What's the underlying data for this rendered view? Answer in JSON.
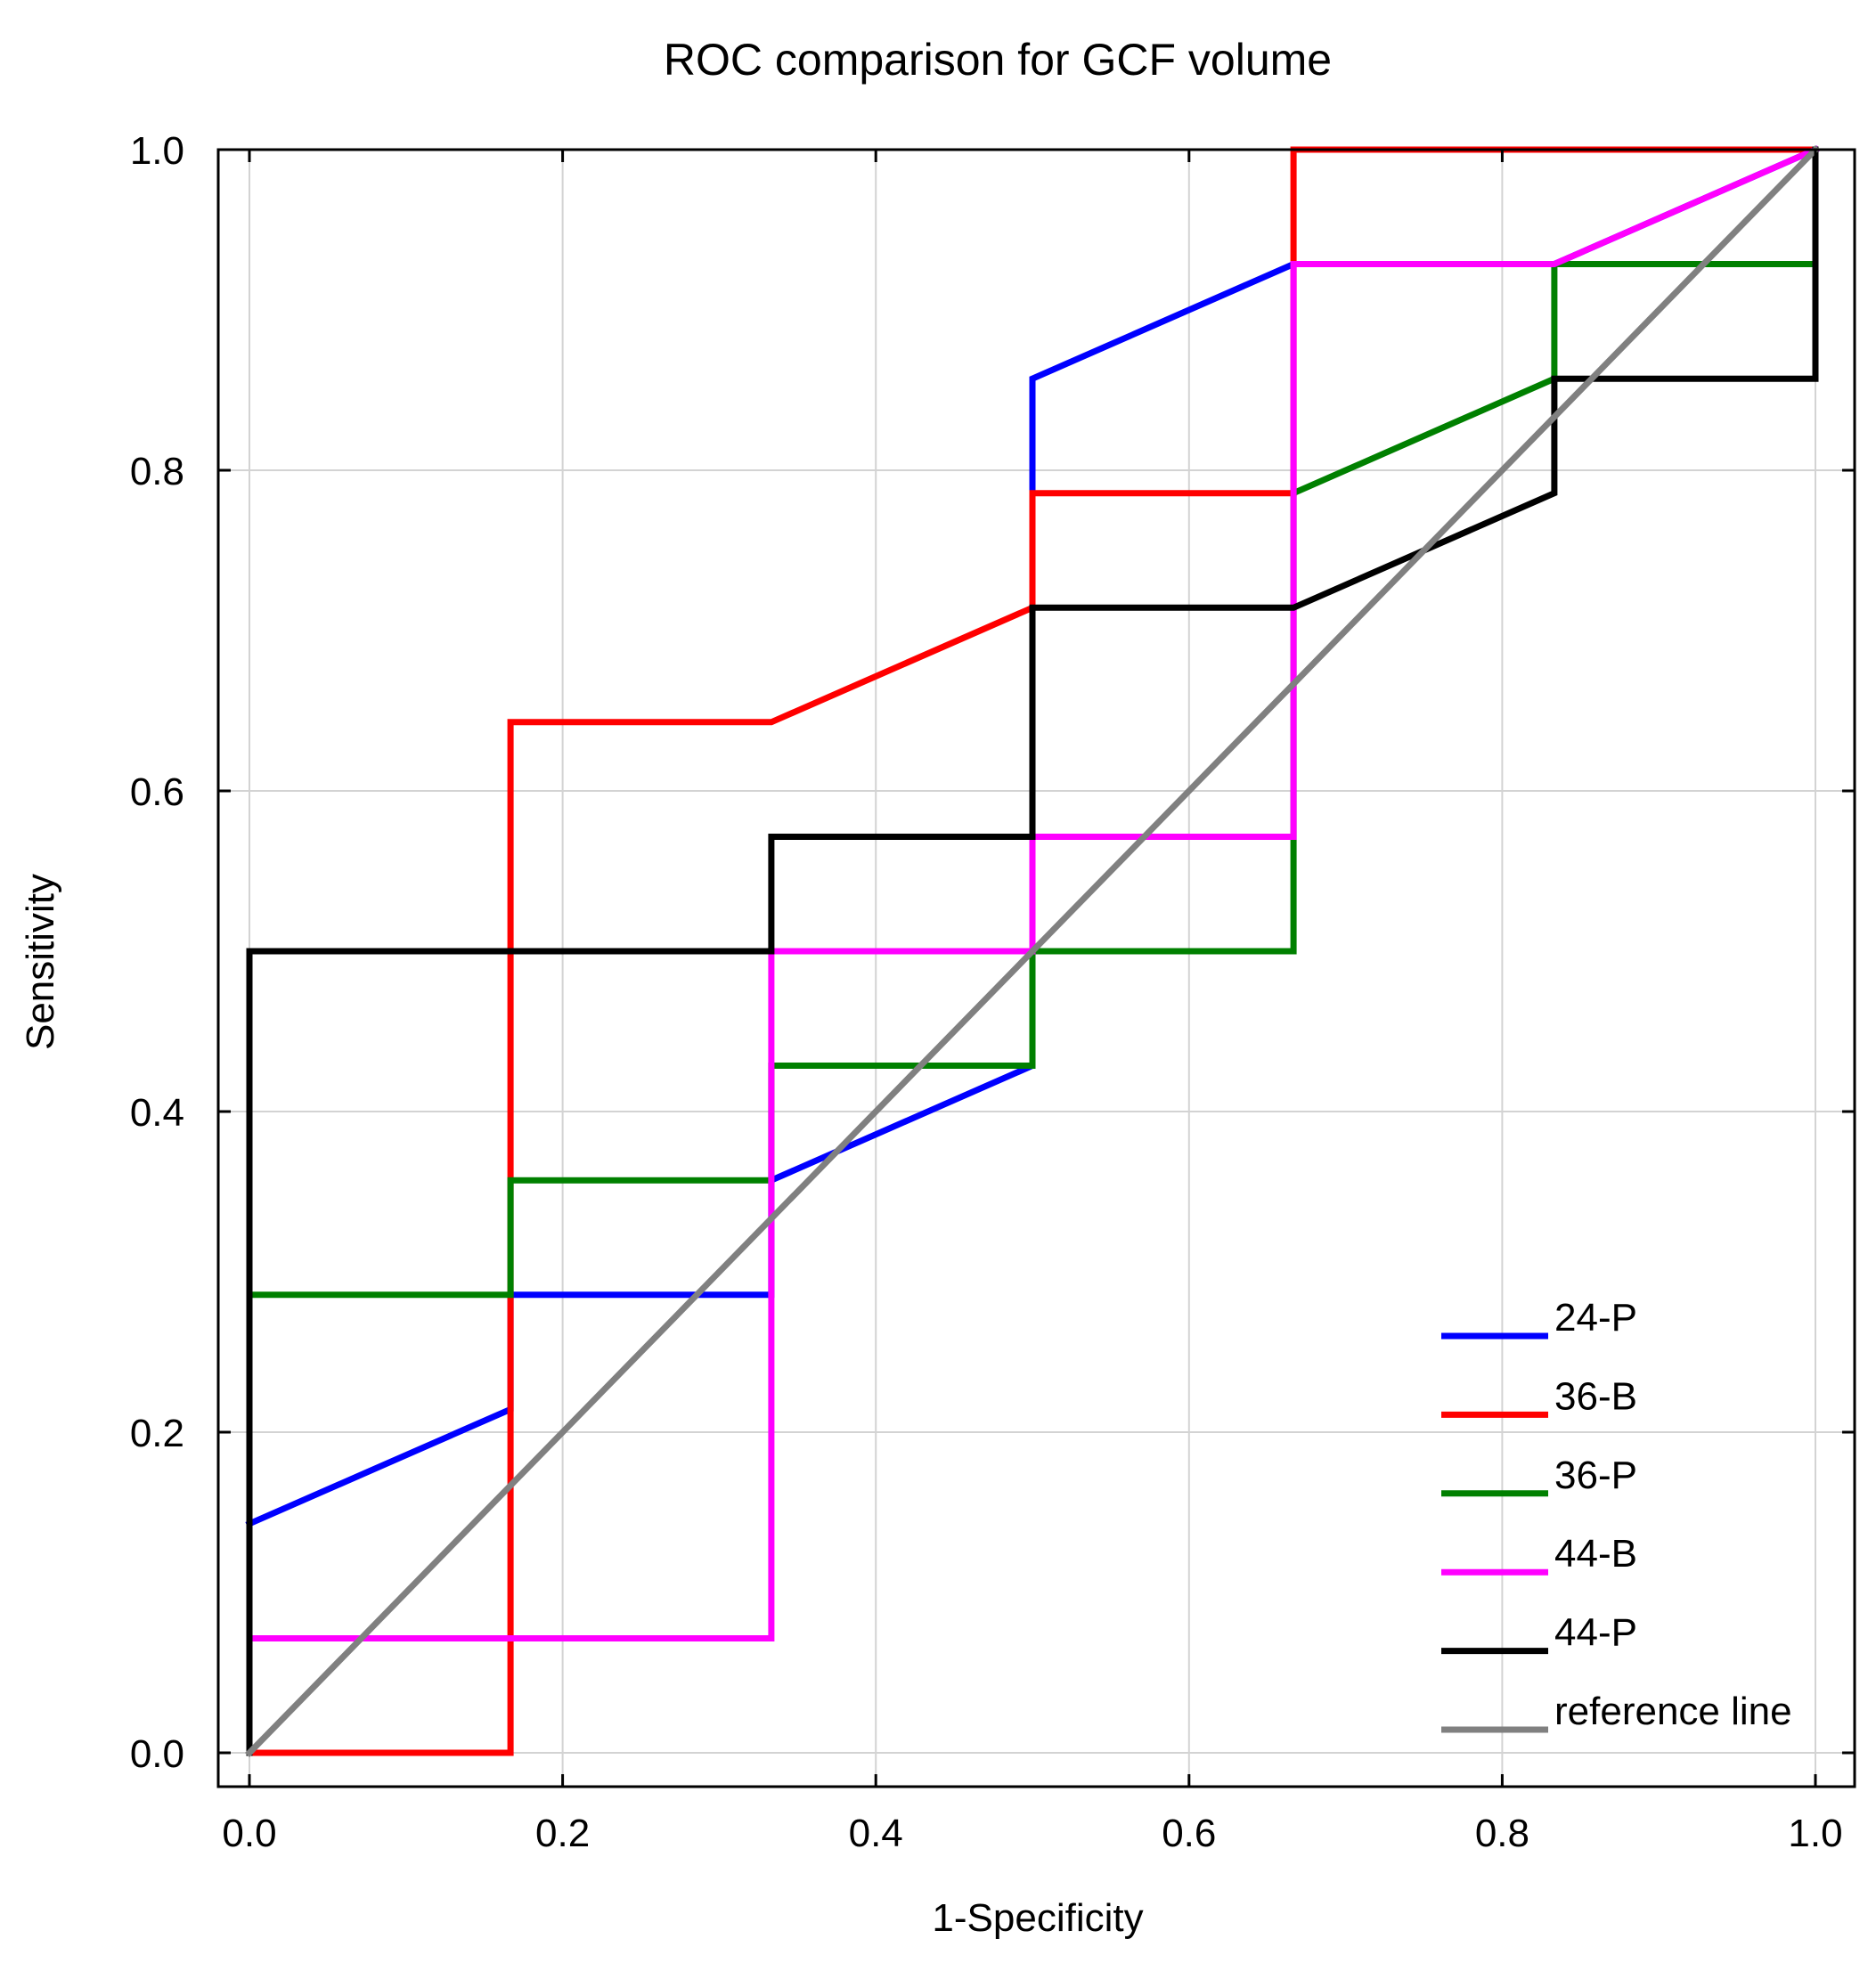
{
  "chart_data": {
    "type": "line",
    "title": "ROC comparison for GCF volume",
    "xlabel": "1-Specificity",
    "ylabel": "Sensitivity",
    "xlim": [
      -0.04,
      1.04
    ],
    "ylim": [
      -0.02,
      1.0
    ],
    "xticks": [
      0.0,
      0.2,
      0.4,
      0.6,
      0.8,
      1.0
    ],
    "yticks": [
      0.0,
      0.2,
      0.4,
      0.6,
      0.8,
      1.0
    ],
    "xtick_labels": [
      "0.0",
      "0.2",
      "0.4",
      "0.6",
      "0.8",
      "1.0"
    ],
    "ytick_labels": [
      "0.0",
      "0.2",
      "0.4",
      "0.6",
      "0.8",
      "1.0"
    ],
    "grid": true,
    "legend_position": "bottom-right",
    "series": [
      {
        "name": "24-P",
        "color": "#0000ff",
        "x": [
          0,
          0.1667,
          0.1667,
          0.3333,
          0.3333,
          0.5,
          0.5,
          0.6667,
          0.6667,
          0.8333,
          1.0
        ],
        "y": [
          0.1429,
          0.2143,
          0.2857,
          0.2857,
          0.3571,
          0.4286,
          0.8571,
          0.9286,
          0.9286,
          0.9286,
          1.0
        ]
      },
      {
        "name": "36-B",
        "color": "#ff0000",
        "x": [
          0,
          0.1667,
          0.1667,
          0.3333,
          0.5,
          0.5,
          0.6667,
          0.6667,
          1.0
        ],
        "y": [
          0,
          0,
          0.6429,
          0.6429,
          0.7143,
          0.7857,
          0.7857,
          1.0,
          1.0
        ]
      },
      {
        "name": "36-P",
        "color": "#008000",
        "x": [
          0,
          0.1667,
          0.1667,
          0.3333,
          0.3333,
          0.5,
          0.5,
          0.6667,
          0.6667,
          0.8333,
          0.8333,
          1.0,
          1.0
        ],
        "y": [
          0.2857,
          0.2857,
          0.3571,
          0.3571,
          0.4286,
          0.4286,
          0.5,
          0.5,
          0.7857,
          0.8571,
          0.9286,
          0.9286,
          1.0
        ]
      },
      {
        "name": "44-B",
        "color": "#ff00ff",
        "x": [
          0,
          0.3333,
          0.3333,
          0.5,
          0.5,
          0.6667,
          0.6667,
          0.8333,
          1.0
        ],
        "y": [
          0.0714,
          0.0714,
          0.5,
          0.5,
          0.5714,
          0.5714,
          0.9286,
          0.9286,
          1.0
        ]
      },
      {
        "name": "44-P",
        "color": "#000000",
        "x": [
          0,
          0,
          0.3333,
          0.3333,
          0.5,
          0.5,
          0.6667,
          0.8333,
          0.8333,
          1.0,
          1.0
        ],
        "y": [
          0,
          0.5,
          0.5,
          0.5714,
          0.5714,
          0.7143,
          0.7143,
          0.7857,
          0.8571,
          0.8571,
          1.0
        ]
      },
      {
        "name": "reference line",
        "color": "#808080",
        "x": [
          0,
          1.0
        ],
        "y": [
          0,
          1.0
        ]
      }
    ]
  }
}
